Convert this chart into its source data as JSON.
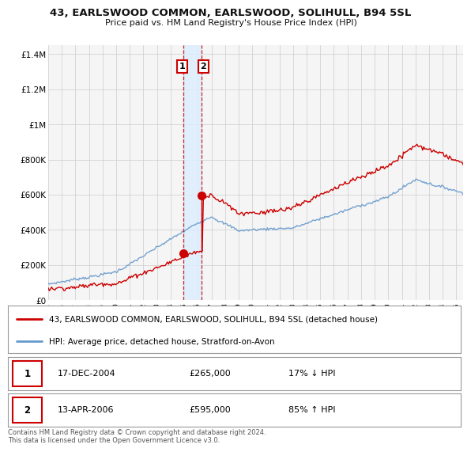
{
  "title": "43, EARLSWOOD COMMON, EARLSWOOD, SOLIHULL, B94 5SL",
  "subtitle": "Price paid vs. HM Land Registry's House Price Index (HPI)",
  "ylabel_ticks": [
    "£0",
    "£200K",
    "£400K",
    "£600K",
    "£800K",
    "£1M",
    "£1.2M",
    "£1.4M"
  ],
  "ytick_values": [
    0,
    200000,
    400000,
    600000,
    800000,
    1000000,
    1200000,
    1400000
  ],
  "ylim": [
    0,
    1450000
  ],
  "xlim_start": 1995.0,
  "xlim_end": 2025.5,
  "xtick_years": [
    1995,
    1996,
    1997,
    1998,
    1999,
    2000,
    2001,
    2002,
    2003,
    2004,
    2005,
    2006,
    2007,
    2008,
    2009,
    2010,
    2011,
    2012,
    2013,
    2014,
    2015,
    2016,
    2017,
    2018,
    2019,
    2020,
    2021,
    2022,
    2023,
    2024,
    2025
  ],
  "transaction1_x": 2004.96,
  "transaction1_y": 265000,
  "transaction1_label": "1",
  "transaction1_date": "17-DEC-2004",
  "transaction1_price": "£265,000",
  "transaction1_hpi": "17% ↓ HPI",
  "transaction2_x": 2006.29,
  "transaction2_y": 595000,
  "transaction2_label": "2",
  "transaction2_date": "13-APR-2006",
  "transaction2_price": "£595,000",
  "transaction2_hpi": "85% ↑ HPI",
  "legend_line1": "43, EARLSWOOD COMMON, EARLSWOOD, SOLIHULL, B94 5SL (detached house)",
  "legend_line2": "HPI: Average price, detached house, Stratford-on-Avon",
  "footer": "Contains HM Land Registry data © Crown copyright and database right 2024.\nThis data is licensed under the Open Government Licence v3.0.",
  "red_color": "#cc0000",
  "blue_color": "#6699cc",
  "vline_color": "#cc0000",
  "shade_color": "#ddeeff",
  "grid_color": "#cccccc",
  "bg_color": "#ffffff",
  "plot_bg": "#f5f5f5"
}
